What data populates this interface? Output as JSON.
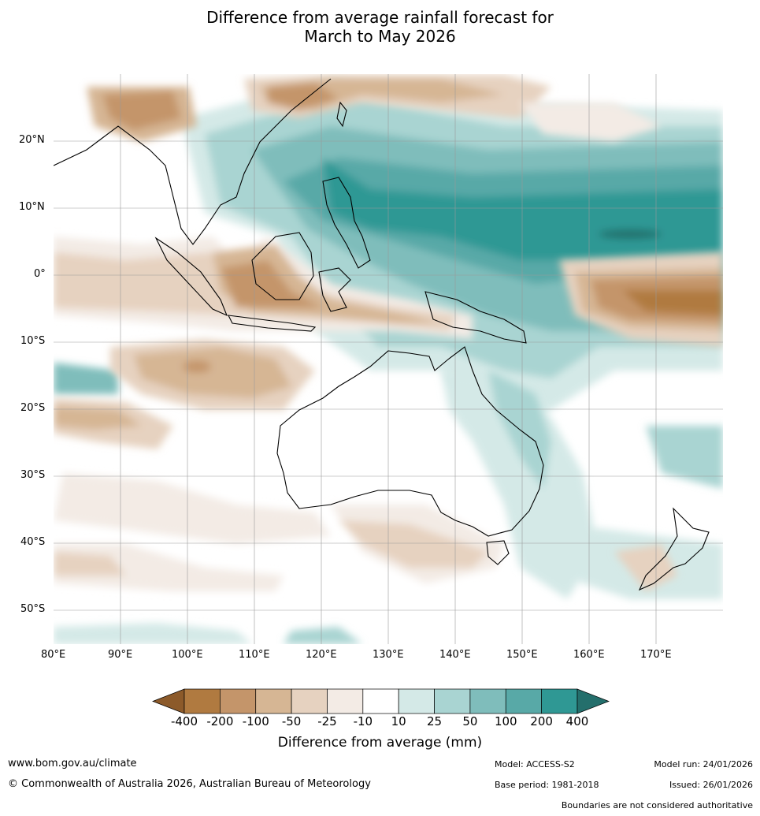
{
  "title_line1": "Difference from average rainfall forecast for",
  "title_line2": "March to May 2026",
  "lat_ticks": [
    "20°N",
    "10°N",
    "0°",
    "10°S",
    "20°S",
    "30°S",
    "40°S",
    "50°S"
  ],
  "lon_ticks": [
    "80°E",
    "90°E",
    "100°E",
    "110°E",
    "120°E",
    "130°E",
    "140°E",
    "150°E",
    "160°E",
    "170°E"
  ],
  "colorbar": {
    "title": "Difference from average (mm)",
    "labels": [
      "-400",
      "-200",
      "-100",
      "-50",
      "-25",
      "-10",
      "10",
      "25",
      "50",
      "100",
      "200",
      "400"
    ],
    "colors": [
      "#a06c34",
      "#b07a40",
      "#c4956a",
      "#d6b694",
      "#e6d2c0",
      "#f3ebe5",
      "#ffffff",
      "#d4e9e7",
      "#a9d4d2",
      "#7fbdbb",
      "#58a9a7",
      "#2f9894",
      "#246f6c"
    ]
  },
  "footer": {
    "url": "www.bom.gov.au/climate",
    "copyright": "© Commonwealth of Australia 2026, Australian Bureau of Meteorology",
    "model": "Model: ACCESS-S2",
    "base_period": "Base period: 1981-2018",
    "model_run": "Model run: 24/01/2026",
    "issued": "Issued: 26/01/2026",
    "disclaimer": "Boundaries are not considered authoritative"
  }
}
